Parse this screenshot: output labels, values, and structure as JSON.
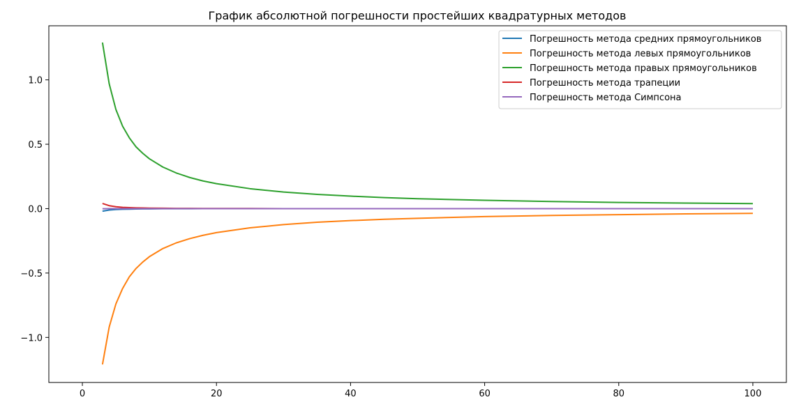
{
  "chart_data": {
    "type": "line",
    "title": "График абсолютной погрешности простейших квадратурных методов",
    "xlabel": "",
    "ylabel": "",
    "xlim": [
      -5,
      105
    ],
    "ylim": [
      -1.35,
      1.42
    ],
    "x_ticks": [
      0,
      20,
      40,
      60,
      80,
      100
    ],
    "x_tick_labels": [
      "0",
      "20",
      "40",
      "60",
      "80",
      "100"
    ],
    "y_ticks": [
      -1.0,
      -0.5,
      0.0,
      0.5,
      1.0
    ],
    "y_tick_labels": [
      "−1.0",
      "−0.5",
      "0.0",
      "0.5",
      "1.0"
    ],
    "grid": false,
    "legend_position": "top-right",
    "x": [
      3,
      4,
      5,
      6,
      7,
      8,
      9,
      10,
      12,
      14,
      16,
      18,
      20,
      25,
      30,
      35,
      40,
      45,
      50,
      60,
      70,
      80,
      90,
      100
    ],
    "series": [
      {
        "name": "Погрешность метода средних прямоугольников",
        "color": "#1f77b4",
        "values": [
          -0.02,
          -0.011,
          -0.007,
          -0.005,
          -0.004,
          -0.003,
          -0.002,
          -0.002,
          -0.001,
          -0.001,
          -0.001,
          0,
          0,
          0,
          0,
          0,
          0,
          0,
          0,
          0,
          0,
          0,
          0,
          0
        ]
      },
      {
        "name": "Погрешность метода левых прямоугольников",
        "color": "#ff7f0e",
        "values": [
          -1.21,
          -0.92,
          -0.74,
          -0.62,
          -0.53,
          -0.465,
          -0.415,
          -0.373,
          -0.31,
          -0.266,
          -0.233,
          -0.207,
          -0.186,
          -0.149,
          -0.124,
          -0.106,
          -0.093,
          -0.083,
          -0.075,
          -0.062,
          -0.053,
          -0.047,
          -0.041,
          -0.037
        ]
      },
      {
        "name": "Погрешность метода правых прямоугольников",
        "color": "#2ca02c",
        "values": [
          1.29,
          0.97,
          0.77,
          0.64,
          0.55,
          0.48,
          0.43,
          0.387,
          0.323,
          0.277,
          0.242,
          0.215,
          0.194,
          0.155,
          0.129,
          0.111,
          0.097,
          0.086,
          0.077,
          0.065,
          0.055,
          0.048,
          0.043,
          0.039
        ]
      },
      {
        "name": "Погрешность метода трапеции",
        "color": "#d62728",
        "values": [
          0.04,
          0.023,
          0.015,
          0.01,
          0.008,
          0.006,
          0.005,
          0.004,
          0.003,
          0.002,
          0.002,
          0.001,
          0.001,
          0.001,
          0,
          0,
          0,
          0,
          0,
          0,
          0,
          0,
          0,
          0
        ]
      },
      {
        "name": "Погрешность метода Симпсона",
        "color": "#9467bd",
        "values": [
          -0.001,
          -0.0005,
          -0.0002,
          -0.0001,
          0,
          0,
          0,
          0,
          0,
          0,
          0,
          0,
          0,
          0,
          0,
          0,
          0,
          0,
          0,
          0,
          0,
          0,
          0,
          0
        ]
      }
    ]
  }
}
